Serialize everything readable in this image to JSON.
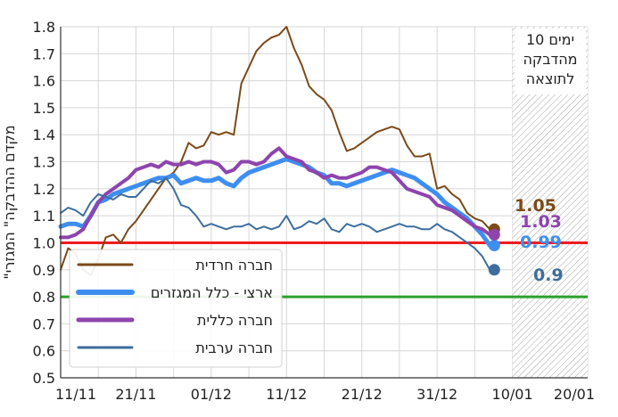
{
  "chart_data": {
    "type": "line",
    "title": "",
    "xlabel": "",
    "ylabel": "\"מקדם ההדבקה\" המגזרי",
    "ylim": [
      0.5,
      1.8
    ],
    "yticks": [
      "0.5",
      "0.6",
      "0.7",
      "0.8",
      "0.9",
      "1.0",
      "1.1",
      "1.2",
      "1.3",
      "1.4",
      "1.5",
      "1.6",
      "1.7",
      "1.8"
    ],
    "xticks": [
      "11/11",
      "21/11",
      "01/12",
      "11/12",
      "21/12",
      "31/12",
      "10/01",
      "20/01"
    ],
    "x_start": "11/11",
    "grid": true,
    "legend_position": "bottom-left",
    "shaded_region": {
      "from": "10/01",
      "to": "20/01",
      "label_lines": [
        "10 ימים",
        "מהדבקה",
        "לתוצאה"
      ]
    },
    "reference_lines": [
      {
        "y": 1.0,
        "color": "#ee1c1c"
      },
      {
        "y": 0.8,
        "color": "#2ca02c"
      }
    ],
    "series": [
      {
        "name": "חברה חרדית",
        "color": "#7b4a19",
        "width": 2,
        "end_value": 1.05,
        "end_label": "1.05",
        "values": [
          0.9,
          0.98,
          0.96,
          0.9,
          0.88,
          0.94,
          1.02,
          1.03,
          1.0,
          1.05,
          1.08,
          1.12,
          1.16,
          1.2,
          1.24,
          1.26,
          1.3,
          1.37,
          1.35,
          1.36,
          1.41,
          1.4,
          1.41,
          1.4,
          1.59,
          1.65,
          1.71,
          1.74,
          1.76,
          1.77,
          1.8,
          1.72,
          1.66,
          1.58,
          1.55,
          1.53,
          1.49,
          1.41,
          1.34,
          1.35,
          1.37,
          1.39,
          1.41,
          1.42,
          1.43,
          1.42,
          1.36,
          1.32,
          1.32,
          1.33,
          1.2,
          1.21,
          1.18,
          1.16,
          1.11,
          1.09,
          1.08,
          1.05
        ]
      },
      {
        "name": "ארצי - כלל המגזרים",
        "color": "#3e8ef0",
        "width": 5,
        "end_value": 0.99,
        "end_label": "0.99",
        "values": [
          1.06,
          1.07,
          1.07,
          1.06,
          1.1,
          1.15,
          1.16,
          1.18,
          1.19,
          1.2,
          1.21,
          1.22,
          1.23,
          1.24,
          1.24,
          1.25,
          1.22,
          1.23,
          1.24,
          1.23,
          1.23,
          1.24,
          1.22,
          1.21,
          1.24,
          1.26,
          1.27,
          1.28,
          1.29,
          1.3,
          1.31,
          1.3,
          1.29,
          1.28,
          1.26,
          1.25,
          1.22,
          1.22,
          1.21,
          1.22,
          1.23,
          1.24,
          1.25,
          1.26,
          1.27,
          1.26,
          1.25,
          1.24,
          1.22,
          1.2,
          1.18,
          1.15,
          1.13,
          1.11,
          1.09,
          1.06,
          1.03,
          0.99
        ]
      },
      {
        "name": "חברה כללית",
        "color": "#8e44ad",
        "width": 4,
        "end_value": 1.03,
        "end_label": "1.03",
        "values": [
          1.02,
          1.02,
          1.03,
          1.05,
          1.1,
          1.15,
          1.18,
          1.2,
          1.22,
          1.24,
          1.27,
          1.28,
          1.29,
          1.28,
          1.3,
          1.29,
          1.29,
          1.3,
          1.29,
          1.3,
          1.3,
          1.29,
          1.26,
          1.27,
          1.3,
          1.3,
          1.29,
          1.3,
          1.33,
          1.35,
          1.32,
          1.31,
          1.3,
          1.27,
          1.26,
          1.24,
          1.25,
          1.24,
          1.24,
          1.25,
          1.26,
          1.28,
          1.28,
          1.27,
          1.26,
          1.23,
          1.2,
          1.19,
          1.18,
          1.17,
          1.14,
          1.13,
          1.12,
          1.1,
          1.08,
          1.06,
          1.05,
          1.03
        ]
      },
      {
        "name": "חברה ערבית",
        "color": "#3e6e9e",
        "width": 2,
        "end_value": 0.9,
        "end_label": "0.9",
        "values": [
          1.11,
          1.13,
          1.12,
          1.1,
          1.15,
          1.18,
          1.17,
          1.16,
          1.18,
          1.17,
          1.17,
          1.2,
          1.23,
          1.22,
          1.24,
          1.2,
          1.14,
          1.13,
          1.1,
          1.06,
          1.07,
          1.06,
          1.05,
          1.06,
          1.06,
          1.07,
          1.05,
          1.06,
          1.05,
          1.06,
          1.1,
          1.05,
          1.06,
          1.08,
          1.07,
          1.09,
          1.05,
          1.04,
          1.07,
          1.06,
          1.07,
          1.06,
          1.04,
          1.05,
          1.06,
          1.07,
          1.06,
          1.06,
          1.05,
          1.05,
          1.07,
          1.05,
          1.04,
          1.02,
          1.0,
          0.98,
          0.95,
          0.9
        ]
      }
    ]
  }
}
